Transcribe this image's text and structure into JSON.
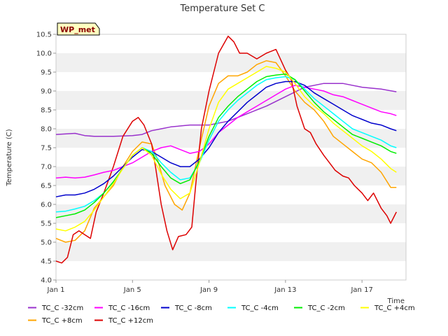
{
  "chart_data": {
    "type": "line",
    "title": "Temperature Set C",
    "xlabel": "Time",
    "ylabel": "Temperature (C)",
    "x_unit": "days (Jan)",
    "xlim": [
      1,
      19.3
    ],
    "ylim": [
      4.0,
      10.5
    ],
    "x_ticks": [
      {
        "value": 1,
        "label": "Jan 1"
      },
      {
        "value": 5,
        "label": "Jan 5"
      },
      {
        "value": 9,
        "label": "Jan 9"
      },
      {
        "value": 13,
        "label": "Jan 13"
      },
      {
        "value": 17,
        "label": "Jan 17"
      }
    ],
    "y_ticks": [
      {
        "value": 4.0,
        "label": "4.0"
      },
      {
        "value": 4.5,
        "label": "4.5"
      },
      {
        "value": 5.0,
        "label": "5.0"
      },
      {
        "value": 5.5,
        "label": "5.5"
      },
      {
        "value": 6.0,
        "label": "6.0"
      },
      {
        "value": 6.5,
        "label": "6.5"
      },
      {
        "value": 7.0,
        "label": "7.0"
      },
      {
        "value": 7.5,
        "label": "7.5"
      },
      {
        "value": 8.0,
        "label": "8.0"
      },
      {
        "value": 8.5,
        "label": "8.5"
      },
      {
        "value": 9.0,
        "label": "9.0"
      },
      {
        "value": 9.5,
        "label": "9.5"
      },
      {
        "value": 10.0,
        "label": "10.0"
      },
      {
        "value": 10.5,
        "label": "10.5"
      }
    ],
    "grid": "horizontal bands",
    "annotation": "WP_met",
    "legend_position": "bottom",
    "series": [
      {
        "name": "TC_C -32cm",
        "color": "#9932cc",
        "points": [
          [
            1,
            7.85
          ],
          [
            2,
            7.88
          ],
          [
            2.5,
            7.82
          ],
          [
            3,
            7.8
          ],
          [
            4,
            7.8
          ],
          [
            5,
            7.82
          ],
          [
            5.5,
            7.85
          ],
          [
            6,
            7.95
          ],
          [
            6.5,
            8.0
          ],
          [
            7,
            8.05
          ],
          [
            8,
            8.1
          ],
          [
            9,
            8.1
          ],
          [
            9.5,
            8.15
          ],
          [
            10,
            8.2
          ],
          [
            11,
            8.4
          ],
          [
            12,
            8.6
          ],
          [
            13,
            8.85
          ],
          [
            14,
            9.1
          ],
          [
            15,
            9.2
          ],
          [
            16,
            9.2
          ],
          [
            17,
            9.1
          ],
          [
            18,
            9.05
          ],
          [
            18.8,
            8.98
          ]
        ]
      },
      {
        "name": "TC_C +8cm",
        "color": "#ffa500",
        "points": [
          [
            1,
            5.1
          ],
          [
            1.5,
            5.0
          ],
          [
            2,
            5.05
          ],
          [
            2.5,
            5.3
          ],
          [
            3,
            5.9
          ],
          [
            3.5,
            6.2
          ],
          [
            4,
            6.5
          ],
          [
            4.5,
            7.0
          ],
          [
            5,
            7.4
          ],
          [
            5.5,
            7.65
          ],
          [
            6,
            7.6
          ],
          [
            6.3,
            7.2
          ],
          [
            6.7,
            6.5
          ],
          [
            7.2,
            6.0
          ],
          [
            7.6,
            5.85
          ],
          [
            8,
            6.3
          ],
          [
            8.5,
            7.5
          ],
          [
            9,
            8.6
          ],
          [
            9.5,
            9.2
          ],
          [
            10,
            9.4
          ],
          [
            10.5,
            9.4
          ],
          [
            11,
            9.5
          ],
          [
            11.5,
            9.7
          ],
          [
            12,
            9.8
          ],
          [
            12.5,
            9.75
          ],
          [
            13,
            9.4
          ],
          [
            13.5,
            9.0
          ],
          [
            14,
            8.7
          ],
          [
            14.5,
            8.5
          ],
          [
            15,
            8.2
          ],
          [
            15.5,
            7.8
          ],
          [
            16,
            7.6
          ],
          [
            16.5,
            7.4
          ],
          [
            17,
            7.2
          ],
          [
            17.5,
            7.1
          ],
          [
            18,
            6.85
          ],
          [
            18.5,
            6.45
          ],
          [
            18.8,
            6.45
          ]
        ]
      },
      {
        "name": "TC_C +12cm",
        "color": "#dd0000",
        "points": [
          [
            1,
            4.5
          ],
          [
            1.3,
            4.45
          ],
          [
            1.6,
            4.6
          ],
          [
            1.9,
            5.2
          ],
          [
            2.2,
            5.3
          ],
          [
            2.5,
            5.2
          ],
          [
            2.8,
            5.1
          ],
          [
            3.1,
            5.8
          ],
          [
            3.5,
            6.3
          ],
          [
            4,
            7.0
          ],
          [
            4.5,
            7.8
          ],
          [
            5,
            8.2
          ],
          [
            5.3,
            8.3
          ],
          [
            5.6,
            8.1
          ],
          [
            6,
            7.6
          ],
          [
            6.2,
            7.0
          ],
          [
            6.5,
            6.0
          ],
          [
            6.8,
            5.3
          ],
          [
            7.1,
            4.8
          ],
          [
            7.4,
            5.15
          ],
          [
            7.8,
            5.2
          ],
          [
            8.1,
            5.4
          ],
          [
            8.3,
            6.5
          ],
          [
            8.6,
            8.0
          ],
          [
            9,
            9.0
          ],
          [
            9.5,
            10.0
          ],
          [
            10,
            10.45
          ],
          [
            10.3,
            10.3
          ],
          [
            10.6,
            10.0
          ],
          [
            11,
            10.0
          ],
          [
            11.5,
            9.85
          ],
          [
            12,
            10.0
          ],
          [
            12.5,
            10.1
          ],
          [
            13,
            9.55
          ],
          [
            13.3,
            9.3
          ],
          [
            13.6,
            8.6
          ],
          [
            14,
            8.0
          ],
          [
            14.3,
            7.9
          ],
          [
            14.6,
            7.6
          ],
          [
            15,
            7.3
          ],
          [
            15.3,
            7.1
          ],
          [
            15.6,
            6.9
          ],
          [
            16,
            6.75
          ],
          [
            16.3,
            6.7
          ],
          [
            16.6,
            6.5
          ],
          [
            17,
            6.3
          ],
          [
            17.3,
            6.1
          ],
          [
            17.6,
            6.3
          ],
          [
            18,
            5.9
          ],
          [
            18.3,
            5.7
          ],
          [
            18.5,
            5.5
          ],
          [
            18.8,
            5.8
          ]
        ]
      },
      {
        "name": "TC_C -16cm",
        "color": "#ff00ff",
        "points": [
          [
            1,
            6.7
          ],
          [
            1.5,
            6.72
          ],
          [
            2,
            6.7
          ],
          [
            2.5,
            6.72
          ],
          [
            3,
            6.78
          ],
          [
            3.5,
            6.85
          ],
          [
            4,
            6.9
          ],
          [
            4.5,
            7.0
          ],
          [
            5,
            7.1
          ],
          [
            5.5,
            7.25
          ],
          [
            6,
            7.4
          ],
          [
            6.5,
            7.5
          ],
          [
            7,
            7.55
          ],
          [
            7.5,
            7.45
          ],
          [
            8,
            7.35
          ],
          [
            8.5,
            7.4
          ],
          [
            9,
            7.6
          ],
          [
            9.5,
            7.9
          ],
          [
            10,
            8.1
          ],
          [
            10.5,
            8.3
          ],
          [
            11,
            8.45
          ],
          [
            11.5,
            8.6
          ],
          [
            12,
            8.75
          ],
          [
            12.5,
            8.9
          ],
          [
            13,
            9.05
          ],
          [
            13.5,
            9.15
          ],
          [
            14,
            9.1
          ],
          [
            14.5,
            9.05
          ],
          [
            15,
            9.0
          ],
          [
            15.5,
            8.9
          ],
          [
            16,
            8.85
          ],
          [
            16.5,
            8.75
          ],
          [
            17,
            8.65
          ],
          [
            17.5,
            8.55
          ],
          [
            18,
            8.45
          ],
          [
            18.5,
            8.4
          ],
          [
            18.8,
            8.35
          ]
        ]
      },
      {
        "name": "TC_C -8cm",
        "color": "#0000cc",
        "points": [
          [
            1,
            6.2
          ],
          [
            1.5,
            6.25
          ],
          [
            2,
            6.25
          ],
          [
            2.5,
            6.3
          ],
          [
            3,
            6.4
          ],
          [
            3.5,
            6.55
          ],
          [
            4,
            6.75
          ],
          [
            4.5,
            7.0
          ],
          [
            5,
            7.25
          ],
          [
            5.5,
            7.45
          ],
          [
            6,
            7.4
          ],
          [
            6.5,
            7.25
          ],
          [
            7,
            7.1
          ],
          [
            7.5,
            7.0
          ],
          [
            8,
            7.0
          ],
          [
            8.5,
            7.2
          ],
          [
            9,
            7.5
          ],
          [
            9.5,
            7.9
          ],
          [
            10,
            8.2
          ],
          [
            10.5,
            8.45
          ],
          [
            11,
            8.7
          ],
          [
            11.5,
            8.9
          ],
          [
            12,
            9.1
          ],
          [
            12.5,
            9.2
          ],
          [
            13,
            9.25
          ],
          [
            13.5,
            9.25
          ],
          [
            14,
            9.15
          ],
          [
            14.5,
            8.95
          ],
          [
            15,
            8.8
          ],
          [
            15.5,
            8.65
          ],
          [
            16,
            8.5
          ],
          [
            16.5,
            8.35
          ],
          [
            17,
            8.25
          ],
          [
            17.5,
            8.15
          ],
          [
            18,
            8.1
          ],
          [
            18.5,
            8.0
          ],
          [
            18.8,
            7.95
          ]
        ]
      },
      {
        "name": "TC_C -4cm",
        "color": "#00ffff",
        "points": [
          [
            1,
            5.8
          ],
          [
            1.5,
            5.82
          ],
          [
            2,
            5.88
          ],
          [
            2.5,
            5.95
          ],
          [
            3,
            6.1
          ],
          [
            3.5,
            6.3
          ],
          [
            4,
            6.6
          ],
          [
            4.5,
            6.95
          ],
          [
            5,
            7.3
          ],
          [
            5.5,
            7.5
          ],
          [
            6,
            7.4
          ],
          [
            6.5,
            7.1
          ],
          [
            7,
            6.85
          ],
          [
            7.5,
            6.65
          ],
          [
            8,
            6.7
          ],
          [
            8.5,
            7.1
          ],
          [
            9,
            7.7
          ],
          [
            9.5,
            8.2
          ],
          [
            10,
            8.5
          ],
          [
            10.5,
            8.75
          ],
          [
            11,
            8.95
          ],
          [
            11.5,
            9.15
          ],
          [
            12,
            9.3
          ],
          [
            12.5,
            9.35
          ],
          [
            13,
            9.38
          ],
          [
            13.5,
            9.3
          ],
          [
            14,
            9.05
          ],
          [
            14.5,
            8.8
          ],
          [
            15,
            8.6
          ],
          [
            15.5,
            8.4
          ],
          [
            16,
            8.2
          ],
          [
            16.5,
            8.0
          ],
          [
            17,
            7.9
          ],
          [
            17.5,
            7.8
          ],
          [
            18,
            7.7
          ],
          [
            18.5,
            7.55
          ],
          [
            18.8,
            7.5
          ]
        ]
      },
      {
        "name": "TC_C -2cm",
        "color": "#00ee00",
        "points": [
          [
            1,
            5.65
          ],
          [
            1.5,
            5.7
          ],
          [
            2,
            5.75
          ],
          [
            2.5,
            5.85
          ],
          [
            3,
            6.05
          ],
          [
            3.5,
            6.3
          ],
          [
            4,
            6.6
          ],
          [
            4.5,
            6.95
          ],
          [
            5,
            7.3
          ],
          [
            5.5,
            7.5
          ],
          [
            6,
            7.35
          ],
          [
            6.5,
            7.0
          ],
          [
            7,
            6.7
          ],
          [
            7.5,
            6.55
          ],
          [
            8,
            6.65
          ],
          [
            8.5,
            7.15
          ],
          [
            9,
            7.8
          ],
          [
            9.5,
            8.3
          ],
          [
            10,
            8.6
          ],
          [
            10.5,
            8.85
          ],
          [
            11,
            9.05
          ],
          [
            11.5,
            9.25
          ],
          [
            12,
            9.38
          ],
          [
            12.5,
            9.42
          ],
          [
            13,
            9.45
          ],
          [
            13.5,
            9.3
          ],
          [
            14,
            9.0
          ],
          [
            14.5,
            8.7
          ],
          [
            15,
            8.45
          ],
          [
            15.5,
            8.25
          ],
          [
            16,
            8.05
          ],
          [
            16.5,
            7.85
          ],
          [
            17,
            7.75
          ],
          [
            17.5,
            7.65
          ],
          [
            18,
            7.55
          ],
          [
            18.5,
            7.4
          ],
          [
            18.8,
            7.35
          ]
        ]
      },
      {
        "name": "TC_C +4cm",
        "color": "#ffff00",
        "points": [
          [
            1,
            5.35
          ],
          [
            1.5,
            5.3
          ],
          [
            2,
            5.4
          ],
          [
            2.5,
            5.55
          ],
          [
            3,
            5.85
          ],
          [
            3.5,
            6.2
          ],
          [
            4,
            6.55
          ],
          [
            4.5,
            6.95
          ],
          [
            5,
            7.3
          ],
          [
            5.5,
            7.5
          ],
          [
            6,
            7.3
          ],
          [
            6.5,
            6.8
          ],
          [
            7,
            6.4
          ],
          [
            7.5,
            6.15
          ],
          [
            8,
            6.3
          ],
          [
            8.5,
            7.1
          ],
          [
            9,
            8.0
          ],
          [
            9.5,
            8.7
          ],
          [
            10,
            9.05
          ],
          [
            10.5,
            9.2
          ],
          [
            11,
            9.35
          ],
          [
            11.5,
            9.5
          ],
          [
            12,
            9.65
          ],
          [
            12.5,
            9.6
          ],
          [
            13,
            9.5
          ],
          [
            13.5,
            9.2
          ],
          [
            14,
            8.85
          ],
          [
            14.5,
            8.6
          ],
          [
            15,
            8.4
          ],
          [
            15.5,
            8.15
          ],
          [
            16,
            7.95
          ],
          [
            16.5,
            7.75
          ],
          [
            17,
            7.55
          ],
          [
            17.5,
            7.4
          ],
          [
            18,
            7.2
          ],
          [
            18.5,
            6.95
          ],
          [
            18.8,
            6.85
          ]
        ]
      }
    ]
  },
  "legend_rows": [
    [
      "TC_C -32cm",
      "TC_C -16cm",
      "TC_C -8cm",
      "TC_C -4cm",
      "TC_C -2cm",
      "TC_C +4cm"
    ],
    [
      "TC_C +8cm",
      "TC_C +12cm"
    ]
  ]
}
